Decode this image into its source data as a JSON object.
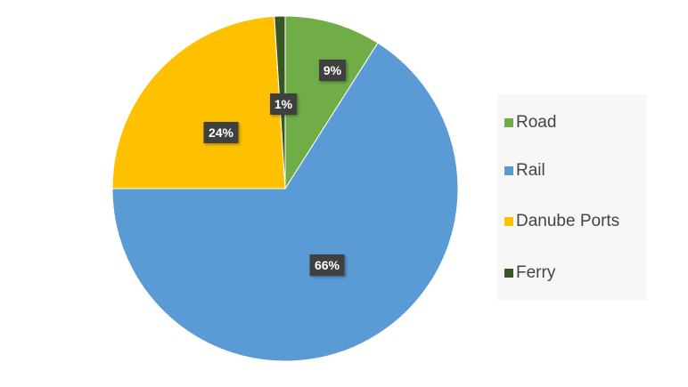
{
  "chart_data": {
    "type": "pie",
    "categories": [
      "Road",
      "Rail",
      "Danube Ports",
      "Ferry"
    ],
    "values": [
      9,
      66,
      24,
      1
    ],
    "data_labels": [
      "9%",
      "66%",
      "24%",
      "1%"
    ],
    "colors": [
      "#70ad47",
      "#5b9bd5",
      "#ffc000",
      "#375623"
    ],
    "start": "12 o'clock",
    "direction": "clockwise",
    "legend": {
      "position": "right",
      "items": [
        {
          "label": "Road",
          "color": "#70ad47"
        },
        {
          "label": "Rail",
          "color": "#5b9bd5"
        },
        {
          "label": "Danube Ports",
          "color": "#ffc000"
        },
        {
          "label": "Ferry",
          "color": "#375623"
        }
      ]
    }
  }
}
